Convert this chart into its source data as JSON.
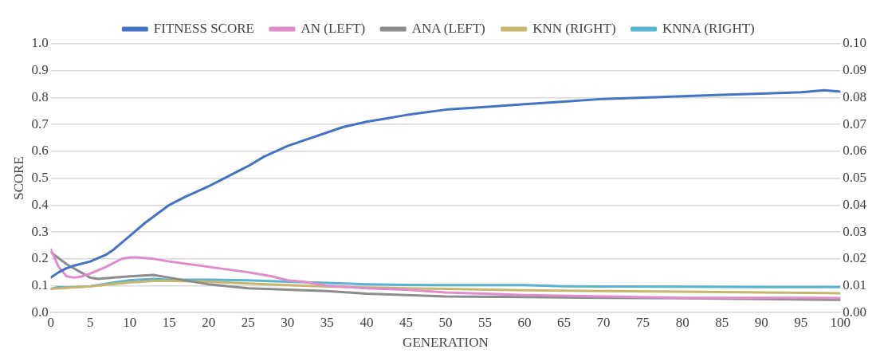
{
  "chart_data": {
    "type": "line",
    "xlabel": "GENERATION",
    "ylabel": "SCORE",
    "legend": "top",
    "grid": "y",
    "marker": "none",
    "line_style": "solid",
    "xlim": [
      0,
      100
    ],
    "xticks": [
      0,
      5,
      10,
      15,
      20,
      25,
      30,
      35,
      40,
      45,
      50,
      55,
      60,
      65,
      70,
      75,
      80,
      85,
      90,
      95,
      100
    ],
    "ylim": [
      0,
      1
    ],
    "yticks": [
      {
        "value": 0,
        "label": "0.0"
      },
      {
        "value": 0.1,
        "label": "0.1"
      },
      {
        "value": 0.2,
        "label": "0.2"
      },
      {
        "value": 0.3,
        "label": "0.3"
      },
      {
        "value": 0.4,
        "label": "0.4"
      },
      {
        "value": 0.5,
        "label": "0.5"
      },
      {
        "value": 0.6,
        "label": "0.6"
      },
      {
        "value": 0.7,
        "label": "0.7"
      },
      {
        "value": 0.8,
        "label": "0.8"
      },
      {
        "value": 0.9,
        "label": "0.9"
      },
      {
        "value": 1,
        "label": "1.0"
      }
    ],
    "y2lim": [
      0,
      0.1
    ],
    "y2ticks": [
      {
        "value": 0,
        "label": "0.00"
      },
      {
        "value": 0.01,
        "label": "0.01"
      },
      {
        "value": 0.02,
        "label": "0.02"
      },
      {
        "value": 0.03,
        "label": "0.03"
      },
      {
        "value": 0.04,
        "label": "0.04"
      },
      {
        "value": 0.05,
        "label": "0.05"
      },
      {
        "value": 0.06,
        "label": "0.06"
      },
      {
        "value": 0.07,
        "label": "0.07"
      },
      {
        "value": 0.08,
        "label": "0.08"
      },
      {
        "value": 0.09,
        "label": "0.09"
      },
      {
        "value": 0.1,
        "label": "0.10"
      }
    ],
    "series": [
      {
        "name": "FITNESS SCORE",
        "color": "#4472c4",
        "x": [
          0,
          1,
          2,
          3,
          5,
          7,
          8,
          10,
          12,
          15,
          17,
          20,
          22,
          25,
          27,
          30,
          32,
          35,
          37,
          40,
          42,
          45,
          50,
          55,
          60,
          65,
          70,
          75,
          80,
          85,
          90,
          95,
          98,
          100
        ],
        "values": [
          0.13,
          0.15,
          0.165,
          0.175,
          0.19,
          0.215,
          0.235,
          0.285,
          0.335,
          0.4,
          0.43,
          0.47,
          0.5,
          0.545,
          0.58,
          0.62,
          0.64,
          0.67,
          0.69,
          0.71,
          0.72,
          0.735,
          0.755,
          0.765,
          0.775,
          0.785,
          0.795,
          0.8,
          0.805,
          0.81,
          0.815,
          0.82,
          0.827,
          0.822
        ]
      },
      {
        "name": "AN (LEFT)",
        "color": "#e08ccc",
        "x": [
          0,
          1,
          2,
          3,
          4,
          5,
          7,
          9,
          10,
          11,
          13,
          15,
          20,
          25,
          28,
          30,
          32,
          35,
          40,
          45,
          50,
          55,
          60,
          70,
          80,
          90,
          100
        ],
        "values": [
          0.235,
          0.17,
          0.135,
          0.13,
          0.135,
          0.145,
          0.17,
          0.2,
          0.205,
          0.205,
          0.2,
          0.19,
          0.17,
          0.15,
          0.135,
          0.12,
          0.115,
          0.1,
          0.09,
          0.085,
          0.075,
          0.07,
          0.065,
          0.06,
          0.055,
          0.055,
          0.054
        ]
      },
      {
        "name": "ANA (LEFT)",
        "color": "#8c8c8c",
        "x": [
          0,
          2,
          5,
          6,
          8,
          10,
          13,
          15,
          17,
          20,
          25,
          30,
          35,
          40,
          45,
          50,
          60,
          70,
          80,
          90,
          100
        ],
        "values": [
          0.225,
          0.18,
          0.13,
          0.125,
          0.13,
          0.135,
          0.14,
          0.13,
          0.12,
          0.105,
          0.09,
          0.085,
          0.08,
          0.07,
          0.065,
          0.06,
          0.058,
          0.055,
          0.053,
          0.05,
          0.047
        ]
      },
      {
        "name": "KNN (RIGHT)",
        "color": "#c9b66e",
        "axis": "y2",
        "x": [
          0,
          2,
          5,
          10,
          13,
          15,
          20,
          25,
          30,
          35,
          40,
          50,
          60,
          70,
          80,
          90,
          100
        ],
        "values": [
          0.0088,
          0.0092,
          0.0098,
          0.0112,
          0.0118,
          0.0118,
          0.0115,
          0.0108,
          0.0102,
          0.0097,
          0.0093,
          0.0088,
          0.0083,
          0.008,
          0.0078,
          0.0075,
          0.0072
        ]
      },
      {
        "name": "KNNA (RIGHT)",
        "color": "#5ab4cf",
        "axis": "y2",
        "x": [
          0,
          1,
          2,
          5,
          8,
          10,
          13,
          15,
          20,
          25,
          30,
          35,
          40,
          45,
          50,
          55,
          60,
          65,
          70,
          80,
          90,
          100
        ],
        "values": [
          0.0088,
          0.0095,
          0.0093,
          0.0098,
          0.0112,
          0.012,
          0.0125,
          0.0122,
          0.0122,
          0.012,
          0.0115,
          0.011,
          0.0105,
          0.0103,
          0.0102,
          0.0102,
          0.0102,
          0.0098,
          0.0097,
          0.0096,
          0.0095,
          0.0095
        ]
      }
    ]
  }
}
